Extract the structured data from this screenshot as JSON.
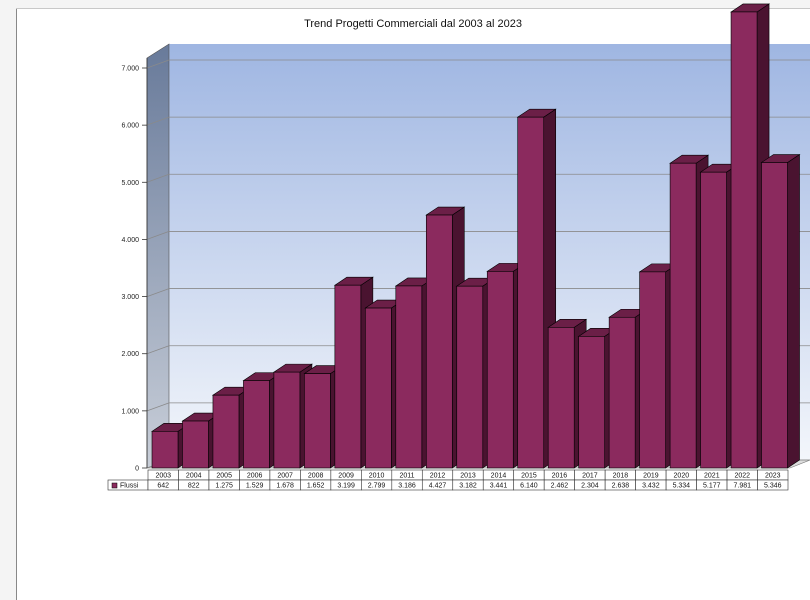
{
  "chart_data": {
    "type": "bar",
    "title": "Trend Progetti Commerciali dal 2003 al 2023",
    "categories": [
      "2003",
      "2004",
      "2005",
      "2006",
      "2007",
      "2008",
      "2009",
      "2010",
      "2011",
      "2012",
      "2013",
      "2014",
      "2015",
      "2016",
      "2017",
      "2018",
      "2019",
      "2020",
      "2021",
      "2022",
      "2023"
    ],
    "series": [
      {
        "name": "Flussi",
        "values": [
          642,
          822,
          1275,
          1529,
          1678,
          1652,
          3199,
          2799,
          3186,
          4427,
          3182,
          3441,
          6140,
          2462,
          2304,
          2638,
          3432,
          5334,
          5177,
          7981,
          5346
        ],
        "value_labels": [
          "642",
          "822",
          "1.275",
          "1.529",
          "1.678",
          "1.652",
          "3.199",
          "2.799",
          "3.186",
          "4.427",
          "3.182",
          "3.441",
          "6.140",
          "2.462",
          "2.304",
          "2.638",
          "3.432",
          "5.334",
          "5.177",
          "7.981",
          "5.346"
        ],
        "color": "#8b2a5e"
      }
    ],
    "yticks": [
      "0",
      "1.000",
      "2.000",
      "3.000",
      "4.000",
      "5.000",
      "6.000",
      "7.000"
    ],
    "ylim": [
      0,
      7000
    ],
    "grid": true,
    "legend": "data-table"
  }
}
